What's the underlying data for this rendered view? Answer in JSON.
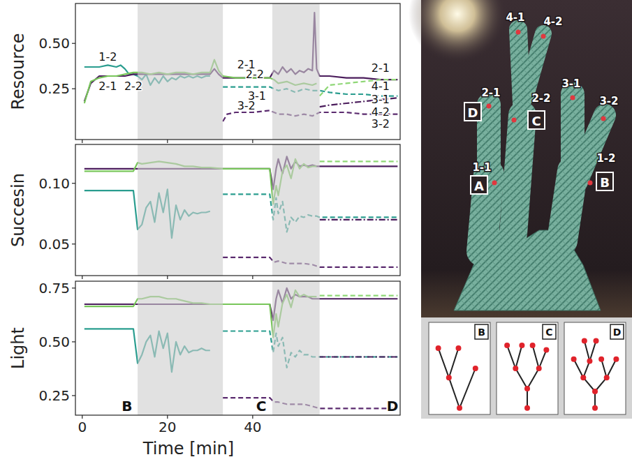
{
  "chart_data": [
    {
      "type": "line",
      "ylabel": "Resource",
      "xlim": [
        -1.6,
        74.6
      ],
      "ylim": [
        -0.03,
        0.72
      ],
      "xticks": [
        0,
        20,
        40
      ],
      "yticks": [
        0.25,
        {
          "value": 0.5,
          "label": "0.50"
        }
      ],
      "tick_labels": "y",
      "grid": false,
      "shaded_ranges": [
        [
          13,
          33
        ],
        [
          44.6,
          55.7
        ]
      ],
      "series": [
        {
          "color": "#2a9d8f",
          "line_style": "solid",
          "x": [
            0.5,
            2,
            4,
            6,
            8,
            9,
            10,
            11,
            12,
            13,
            14,
            15,
            16,
            17,
            18,
            19,
            20,
            21,
            22,
            23,
            24,
            25,
            26,
            27,
            28,
            29,
            30
          ],
          "values": [
            0.37,
            0.37,
            0.37,
            0.38,
            0.37,
            0.38,
            0.36,
            0.33,
            0.33,
            0.32,
            0.3,
            0.33,
            0.27,
            0.31,
            0.28,
            0.32,
            0.29,
            0.31,
            0.3,
            0.32,
            0.31,
            0.32,
            0.31,
            0.32,
            0.31,
            0.32,
            0.32
          ]
        },
        {
          "color": "#4b1d5c",
          "line_style": "solid",
          "x": [
            0.5,
            2,
            4,
            6,
            8,
            10,
            12,
            14,
            16,
            18,
            20,
            22,
            24,
            26,
            28,
            30,
            31,
            32,
            33,
            36,
            40,
            44,
            45,
            46,
            47,
            48,
            49,
            50,
            51,
            52,
            53,
            54,
            54.5,
            55,
            55.7,
            58,
            62,
            66,
            70,
            74
          ],
          "values": [
            0.18,
            0.28,
            0.32,
            0.32,
            0.32,
            0.32,
            0.33,
            0.33,
            0.33,
            0.33,
            0.33,
            0.33,
            0.33,
            0.33,
            0.33,
            0.33,
            0.36,
            0.33,
            0.31,
            0.31,
            0.31,
            0.31,
            0.35,
            0.33,
            0.37,
            0.34,
            0.36,
            0.33,
            0.35,
            0.34,
            0.36,
            0.35,
            0.67,
            0.36,
            0.32,
            0.32,
            0.31,
            0.31,
            0.3,
            0.3
          ]
        },
        {
          "color": "#78c65a",
          "line_style": "solid",
          "x": [
            0.5,
            2,
            4,
            6,
            8,
            10,
            12,
            14,
            16,
            18,
            20,
            22,
            24,
            26,
            28,
            30,
            31,
            32,
            33,
            36,
            40,
            44,
            45,
            46,
            48,
            50,
            52,
            54,
            55
          ],
          "values": [
            0.17,
            0.29,
            0.31,
            0.32,
            0.32,
            0.33,
            0.34,
            0.34,
            0.33,
            0.34,
            0.33,
            0.34,
            0.34,
            0.33,
            0.34,
            0.34,
            0.41,
            0.35,
            0.32,
            0.31,
            0.31,
            0.31,
            0.3,
            0.28,
            0.29,
            0.27,
            0.28,
            0.27,
            0.28
          ]
        },
        {
          "color": "#2a9d8f",
          "line_style": "dashed",
          "x": [
            33,
            36,
            40,
            44,
            46,
            48,
            50,
            52,
            54,
            55.7,
            58,
            62,
            66,
            70,
            74
          ],
          "values": [
            0.26,
            0.26,
            0.26,
            0.26,
            0.24,
            0.25,
            0.23,
            0.25,
            0.24,
            0.24,
            0.23,
            0.22,
            0.22,
            0.21,
            0.21
          ]
        },
        {
          "color": "#5a2a6e",
          "line_style": "dashed",
          "x": [
            33,
            34,
            36,
            40,
            44,
            46,
            48,
            50,
            52,
            54,
            55.7,
            58,
            62,
            66,
            70,
            74
          ],
          "values": [
            0.07,
            0.11,
            0.12,
            0.12,
            0.13,
            0.11,
            0.11,
            0.1,
            0.11,
            0.1,
            0.12,
            0.12,
            0.12,
            0.11,
            0.11,
            0.11
          ]
        },
        {
          "color": "#8fd776",
          "line_style": "dashed",
          "x": [
            55.7,
            58,
            62,
            66,
            70,
            74
          ],
          "values": [
            0.21,
            0.27,
            0.28,
            0.29,
            0.3,
            0.3
          ]
        },
        {
          "color": "#4b1d5c",
          "line_style": "dashdot",
          "x": [
            55.7,
            58,
            62,
            66,
            70,
            74
          ],
          "values": [
            0.15,
            0.16,
            0.17,
            0.18,
            0.19,
            0.2
          ]
        }
      ],
      "annotations": [
        {
          "text": "1-2",
          "x": 6,
          "y": 0.425
        },
        {
          "text": "2-1",
          "x": 6,
          "y": 0.265
        },
        {
          "text": "2-2",
          "x": 12,
          "y": 0.265
        },
        {
          "text": "2-1",
          "x": 38.5,
          "y": 0.385
        },
        {
          "text": "2-2",
          "x": 40.5,
          "y": 0.33
        },
        {
          "text": "3-1",
          "x": 41,
          "y": 0.21
        },
        {
          "text": "3-2",
          "x": 38.5,
          "y": 0.155
        },
        {
          "text": "2-1",
          "x": 70,
          "y": 0.365
        },
        {
          "text": "4-1",
          "x": 70,
          "y": 0.265
        },
        {
          "text": "3-1",
          "x": 70,
          "y": 0.192
        },
        {
          "text": "4-2",
          "x": 70,
          "y": 0.123
        },
        {
          "text": "3-2",
          "x": 70,
          "y": 0.058
        }
      ]
    },
    {
      "type": "line",
      "ylabel": "Succesin",
      "xlim": [
        -1.6,
        74.6
      ],
      "ylim": [
        0.024,
        0.132
      ],
      "xticks": [
        0,
        20,
        40
      ],
      "yticks": [
        0.05,
        {
          "value": 0.1,
          "label": "0.10"
        }
      ],
      "tick_labels": "y",
      "grid": false,
      "shaded_ranges": [
        [
          13,
          33
        ],
        [
          44.6,
          55.7
        ]
      ],
      "series": [
        {
          "color": "#2a9d8f",
          "line_style": "solid",
          "x": [
            0.5,
            4,
            8,
            12,
            13,
            14,
            15,
            16,
            17,
            18,
            19,
            20,
            21,
            22,
            23,
            24,
            25,
            26,
            27,
            28,
            29,
            30
          ],
          "values": [
            0.094,
            0.094,
            0.094,
            0.094,
            0.062,
            0.066,
            0.08,
            0.085,
            0.068,
            0.092,
            0.076,
            0.095,
            0.055,
            0.082,
            0.07,
            0.078,
            0.073,
            0.076,
            0.075,
            0.076,
            0.076,
            0.077
          ]
        },
        {
          "color": "#4b1d5c",
          "line_style": "solid",
          "x": [
            0.5,
            8,
            16,
            24,
            30,
            33,
            40,
            44,
            44.8,
            45.5,
            46,
            47,
            48,
            49,
            50,
            51,
            52,
            53,
            54,
            55,
            55.7,
            58,
            62,
            66,
            70,
            74
          ],
          "values": [
            0.112,
            0.112,
            0.112,
            0.112,
            0.112,
            0.112,
            0.112,
            0.112,
            0.095,
            0.112,
            0.12,
            0.108,
            0.122,
            0.112,
            0.118,
            0.114,
            0.115,
            0.114,
            0.115,
            0.114,
            0.114,
            0.114,
            0.114,
            0.114,
            0.114,
            0.114
          ]
        },
        {
          "color": "#78c65a",
          "line_style": "solid",
          "x": [
            0.5,
            8,
            12,
            13,
            14,
            16,
            18,
            20,
            22,
            24,
            26,
            28,
            30,
            33,
            40,
            44,
            44.8,
            45.5,
            46,
            47,
            48,
            49,
            50,
            51,
            52,
            53,
            54,
            55
          ],
          "values": [
            0.11,
            0.11,
            0.11,
            0.117,
            0.116,
            0.117,
            0.118,
            0.117,
            0.116,
            0.114,
            0.114,
            0.113,
            0.113,
            0.112,
            0.112,
            0.112,
            0.083,
            0.098,
            0.09,
            0.11,
            0.115,
            0.104,
            0.12,
            0.112,
            0.116,
            0.113,
            0.114,
            0.114
          ]
        },
        {
          "color": "#2a9d8f",
          "line_style": "dashed",
          "x": [
            33,
            40,
            44,
            44.8,
            45.5,
            46,
            47,
            48,
            49,
            50,
            51,
            52,
            53,
            54,
            55,
            55.7,
            58,
            62,
            66,
            70,
            74
          ],
          "values": [
            0.091,
            0.091,
            0.091,
            0.07,
            0.088,
            0.075,
            0.085,
            0.06,
            0.072,
            0.068,
            0.073,
            0.072,
            0.074,
            0.073,
            0.073,
            0.072,
            0.072,
            0.072,
            0.072,
            0.072,
            0.072
          ]
        },
        {
          "color": "#5a2a6e",
          "line_style": "dashed",
          "x": [
            33,
            40,
            44,
            45,
            46,
            48,
            50,
            52,
            54,
            55.7,
            58,
            62,
            66,
            70,
            74
          ],
          "values": [
            0.039,
            0.039,
            0.039,
            0.035,
            0.036,
            0.034,
            0.034,
            0.034,
            0.033,
            0.031,
            0.031,
            0.031,
            0.031,
            0.031,
            0.031
          ]
        },
        {
          "color": "#8fd776",
          "line_style": "dashed",
          "x": [
            55.7,
            58,
            62,
            66,
            70,
            74
          ],
          "values": [
            0.118,
            0.118,
            0.118,
            0.118,
            0.118,
            0.118
          ]
        },
        {
          "color": "#4b1d5c",
          "line_style": "dashdot",
          "x": [
            55.7,
            58,
            62,
            66,
            70,
            74
          ],
          "values": [
            0.07,
            0.07,
            0.07,
            0.07,
            0.07,
            0.07
          ]
        }
      ]
    },
    {
      "type": "line",
      "ylabel": "Light",
      "xlabel": "Time [min]",
      "xlim": [
        -1.6,
        74.6
      ],
      "ylim": [
        0.159,
        0.782
      ],
      "xticks": [
        0,
        20,
        40
      ],
      "yticks": [
        0.25,
        {
          "value": 0.5,
          "label": "0.50"
        },
        0.75
      ],
      "tick_labels": true,
      "grid": false,
      "shaded_ranges": [
        [
          13,
          33
        ],
        [
          44.6,
          55.7
        ]
      ],
      "series": [
        {
          "color": "#2a9d8f",
          "line_style": "solid",
          "x": [
            0.5,
            4,
            8,
            12,
            13,
            14,
            15,
            16,
            17,
            18,
            19,
            20,
            21,
            22,
            23,
            24,
            25,
            26,
            27,
            28,
            29,
            30
          ],
          "values": [
            0.56,
            0.56,
            0.56,
            0.56,
            0.4,
            0.44,
            0.5,
            0.53,
            0.43,
            0.55,
            0.47,
            0.54,
            0.36,
            0.5,
            0.44,
            0.48,
            0.45,
            0.46,
            0.46,
            0.47,
            0.46,
            0.46
          ]
        },
        {
          "color": "#4b1d5c",
          "line_style": "solid",
          "x": [
            0.5,
            8,
            16,
            24,
            30,
            33,
            40,
            44,
            44.8,
            45.5,
            46,
            47,
            48,
            49,
            50,
            51,
            52,
            53,
            54,
            55,
            55.7,
            58,
            62,
            66,
            70,
            74
          ],
          "values": [
            0.675,
            0.675,
            0.675,
            0.675,
            0.675,
            0.675,
            0.675,
            0.675,
            0.6,
            0.7,
            0.74,
            0.68,
            0.75,
            0.7,
            0.72,
            0.71,
            0.71,
            0.71,
            0.7,
            0.7,
            0.7,
            0.7,
            0.7,
            0.7,
            0.7,
            0.7
          ]
        },
        {
          "color": "#78c65a",
          "line_style": "solid",
          "x": [
            0.5,
            8,
            12,
            13,
            14,
            16,
            18,
            20,
            22,
            24,
            26,
            28,
            30,
            33,
            40,
            44,
            44.8,
            45.5,
            46,
            47,
            48,
            49,
            50,
            51,
            52,
            53,
            54,
            55
          ],
          "values": [
            0.665,
            0.665,
            0.665,
            0.7,
            0.7,
            0.71,
            0.71,
            0.7,
            0.7,
            0.69,
            0.68,
            0.68,
            0.675,
            0.675,
            0.675,
            0.675,
            0.52,
            0.63,
            0.57,
            0.68,
            0.72,
            0.66,
            0.74,
            0.71,
            0.72,
            0.71,
            0.71,
            0.71
          ]
        },
        {
          "color": "#2a9d8f",
          "line_style": "dashed",
          "x": [
            33,
            40,
            44,
            44.8,
            45.5,
            46,
            47,
            48,
            49,
            50,
            51,
            52,
            53,
            54,
            55,
            55.7,
            58,
            62,
            66,
            70,
            74
          ],
          "values": [
            0.55,
            0.55,
            0.55,
            0.45,
            0.54,
            0.48,
            0.52,
            0.38,
            0.45,
            0.43,
            0.46,
            0.44,
            0.44,
            0.43,
            0.43,
            0.43,
            0.43,
            0.43,
            0.43,
            0.43,
            0.43
          ]
        },
        {
          "color": "#5a2a6e",
          "line_style": "dashed",
          "x": [
            33,
            40,
            44,
            45,
            46,
            48,
            50,
            52,
            54,
            55.7,
            58,
            62,
            66,
            70,
            74
          ],
          "values": [
            0.24,
            0.24,
            0.24,
            0.22,
            0.22,
            0.21,
            0.21,
            0.21,
            0.2,
            0.19,
            0.19,
            0.19,
            0.19,
            0.19,
            0.19
          ]
        },
        {
          "color": "#8fd776",
          "line_style": "dashed",
          "x": [
            55.7,
            58,
            62,
            66,
            70,
            74
          ],
          "values": [
            0.715,
            0.715,
            0.715,
            0.715,
            0.715,
            0.715
          ]
        },
        {
          "color": "#4b1d5c",
          "line_style": "dashdot",
          "x": [
            55.7,
            58,
            62,
            66,
            70,
            74
          ],
          "values": [
            0.43,
            0.43,
            0.43,
            0.43,
            0.43,
            0.43
          ]
        }
      ],
      "annotations": [
        {
          "text": "B",
          "x": 10.5,
          "y": 0.2
        },
        {
          "text": "C",
          "x": 42,
          "y": 0.2
        },
        {
          "text": "D",
          "x": 72.8,
          "y": 0.2
        }
      ]
    }
  ],
  "photo": {
    "labels": [
      "4-1",
      "4-2",
      "2-1",
      "2-2",
      "3-1",
      "3-2",
      "1-1",
      "1-2"
    ],
    "boxed_labels": [
      "D",
      "C",
      "A",
      "B"
    ]
  },
  "tree_panels": [
    "B",
    "C",
    "D"
  ]
}
